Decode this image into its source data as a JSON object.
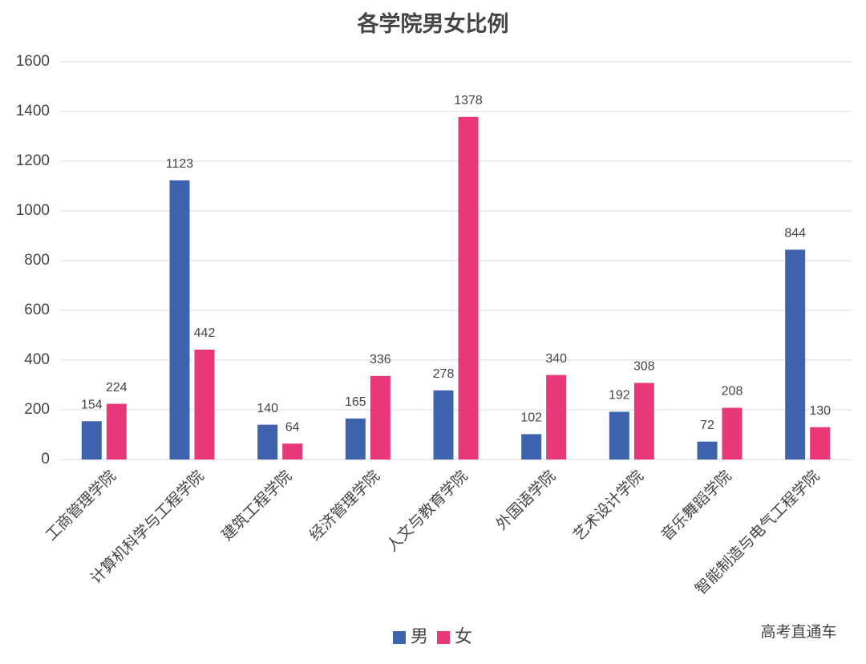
{
  "chart_data": {
    "type": "bar",
    "title": "各学院男女比例",
    "categories": [
      "工商管理学院",
      "计算机科学与工程学院",
      "建筑工程学院",
      "经济管理学院",
      "人文与教育学院",
      "外国语学院",
      "艺术设计学院",
      "音乐舞蹈学院",
      "智能制造与电气工程学院"
    ],
    "series": [
      {
        "name": "男",
        "color": "#3f62ad",
        "values": [
          154,
          1123,
          140,
          165,
          278,
          102,
          192,
          72,
          844
        ]
      },
      {
        "name": "女",
        "color": "#e8387a",
        "values": [
          224,
          442,
          64,
          336,
          1378,
          340,
          308,
          208,
          130
        ]
      }
    ],
    "ylim": [
      0,
      1600
    ],
    "yticks": [
      0,
      200,
      400,
      600,
      800,
      1000,
      1200,
      1400,
      1600
    ],
    "grid": true,
    "legend": "bottom",
    "watermark": "高考直通车"
  }
}
